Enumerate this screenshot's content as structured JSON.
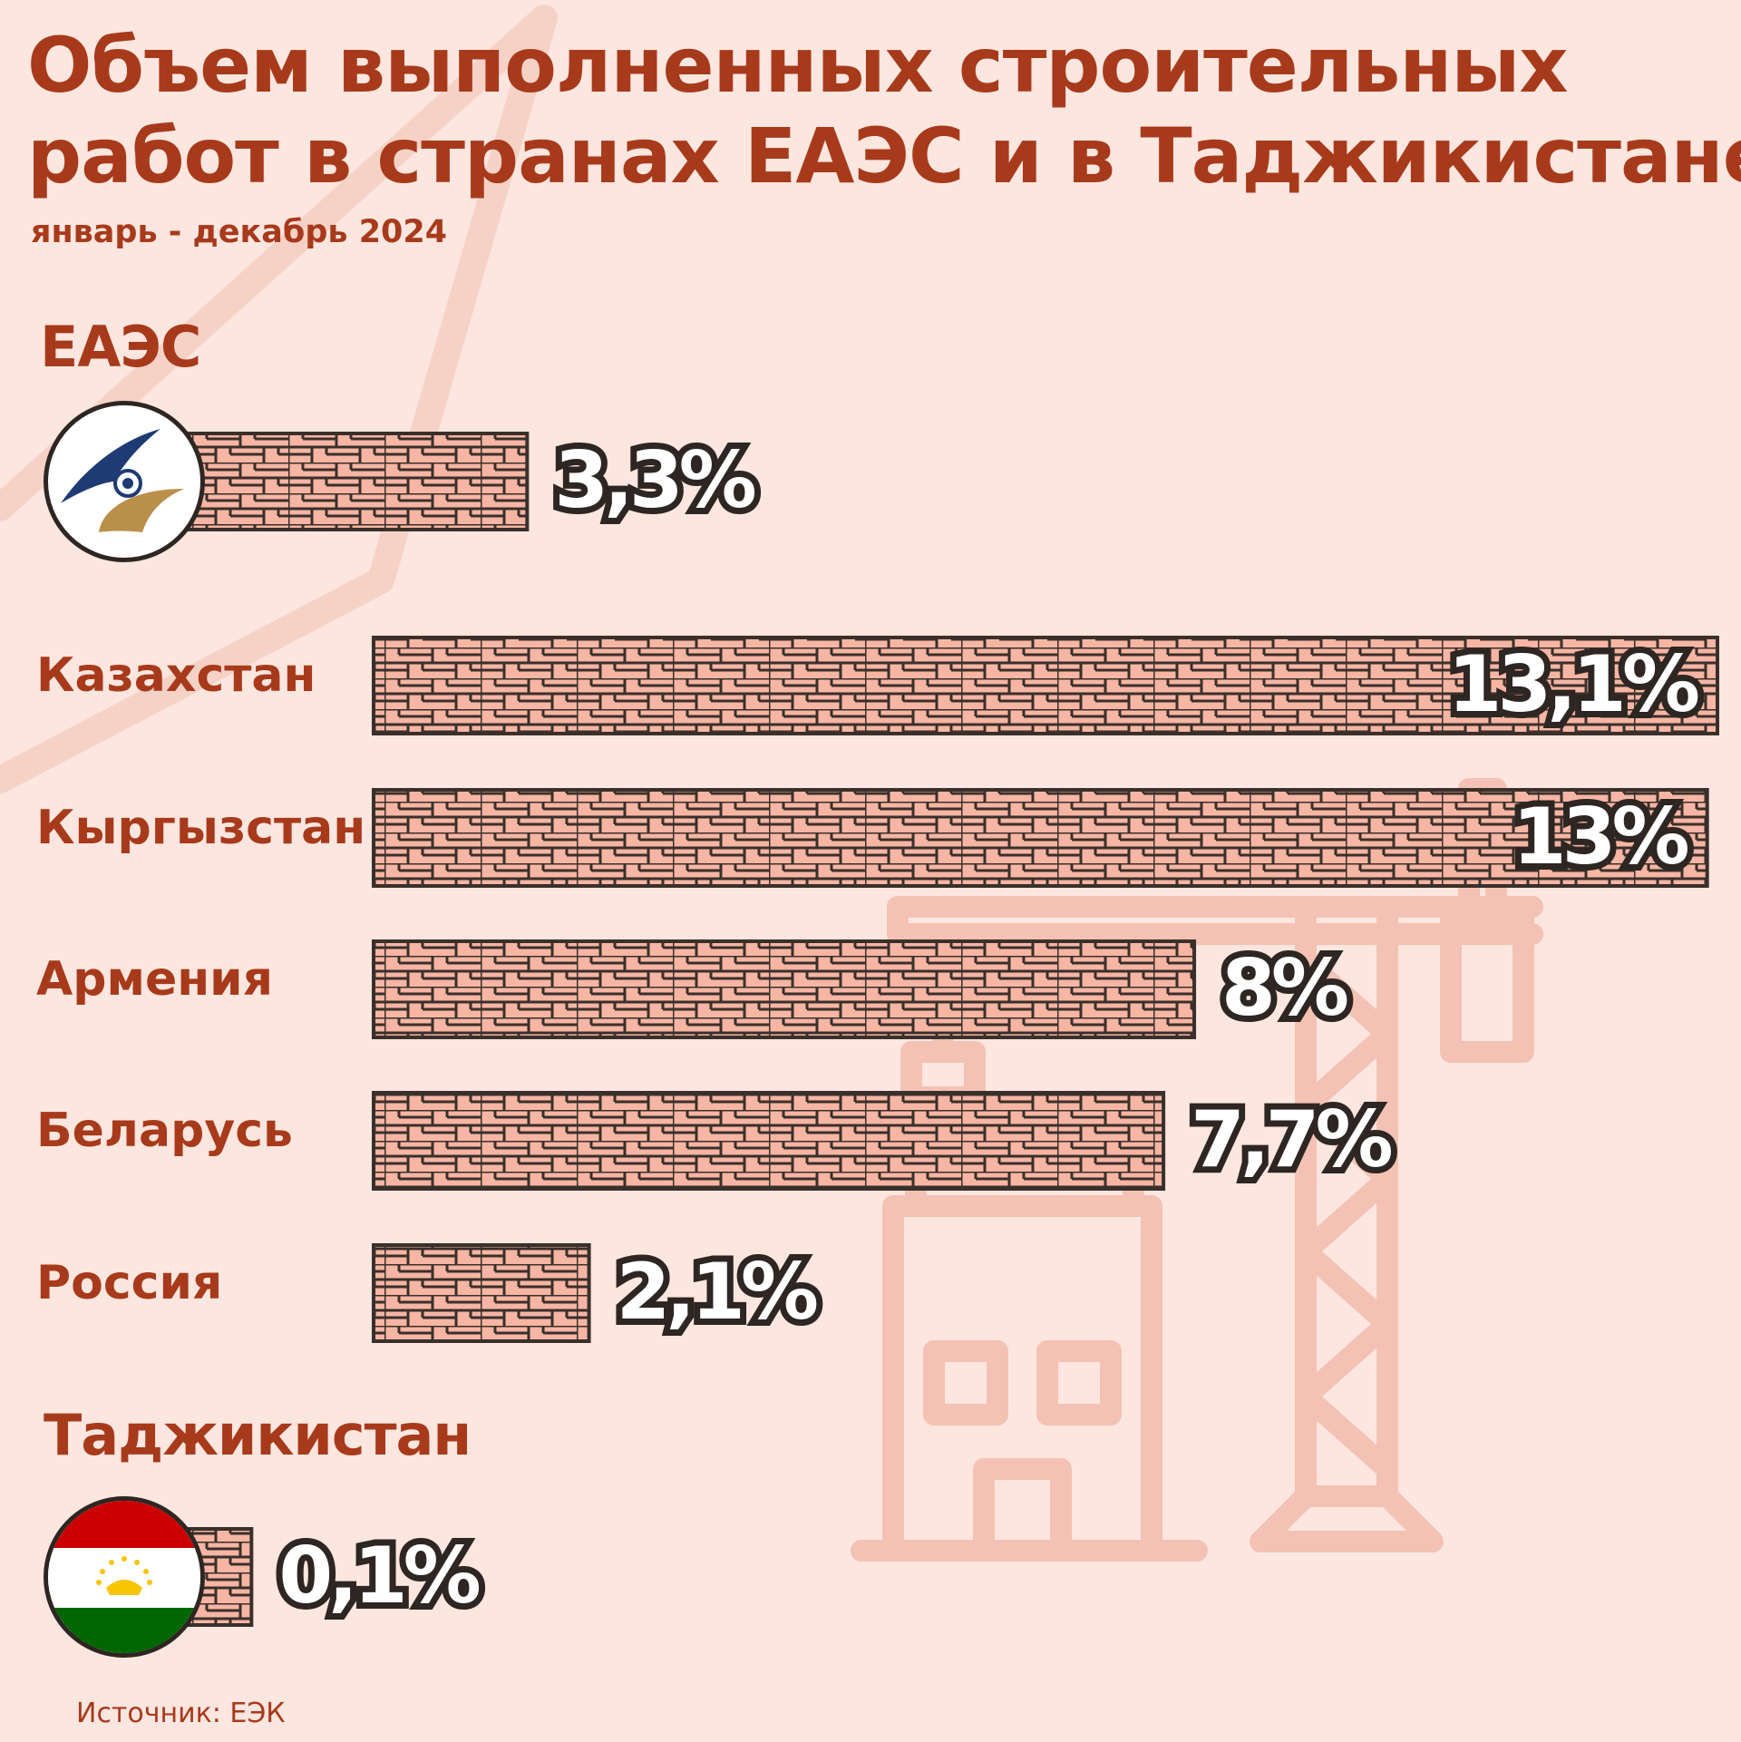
{
  "title_line1": "Объем выполненных строительных",
  "title_line2": "работ в странах ЕАЭС и в Таджикистане",
  "subtitle": "январь - декабрь 2024",
  "section_eaeu": "ЕАЭС",
  "section_tajikistan": "Таджикистан",
  "source": "Источник: ЕЭК",
  "colors": {
    "background": "#fce6df",
    "accent": "#a83a1c",
    "brick": "#f7b5a3",
    "mortar": "#3a302b",
    "watermark": "#f3c2b4"
  },
  "icons": {
    "eaeu": "eaeu-emblem-icon",
    "tajikistan": "tajikistan-flag-icon",
    "watermark": "construction-crane-building-icon"
  },
  "chart_data": {
    "type": "bar",
    "orientation": "horizontal",
    "unit": "%",
    "categories": [
      "ЕАЭС",
      "Казахстан",
      "Кыргызстан",
      "Армения",
      "Беларусь",
      "Россия",
      "Таджикистан"
    ],
    "values": [
      3.3,
      13.1,
      13,
      8,
      7.7,
      2.1,
      0.1
    ],
    "value_labels": [
      "3,3%",
      "13,1%",
      "13%",
      "8%",
      "7,7%",
      "2,1%",
      "0,1%"
    ],
    "title": "Объем выполненных строительных работ в странах ЕАЭС и в Таджикистане",
    "subtitle": "январь - декабрь 2024",
    "xlim": [
      0,
      13.1
    ]
  }
}
